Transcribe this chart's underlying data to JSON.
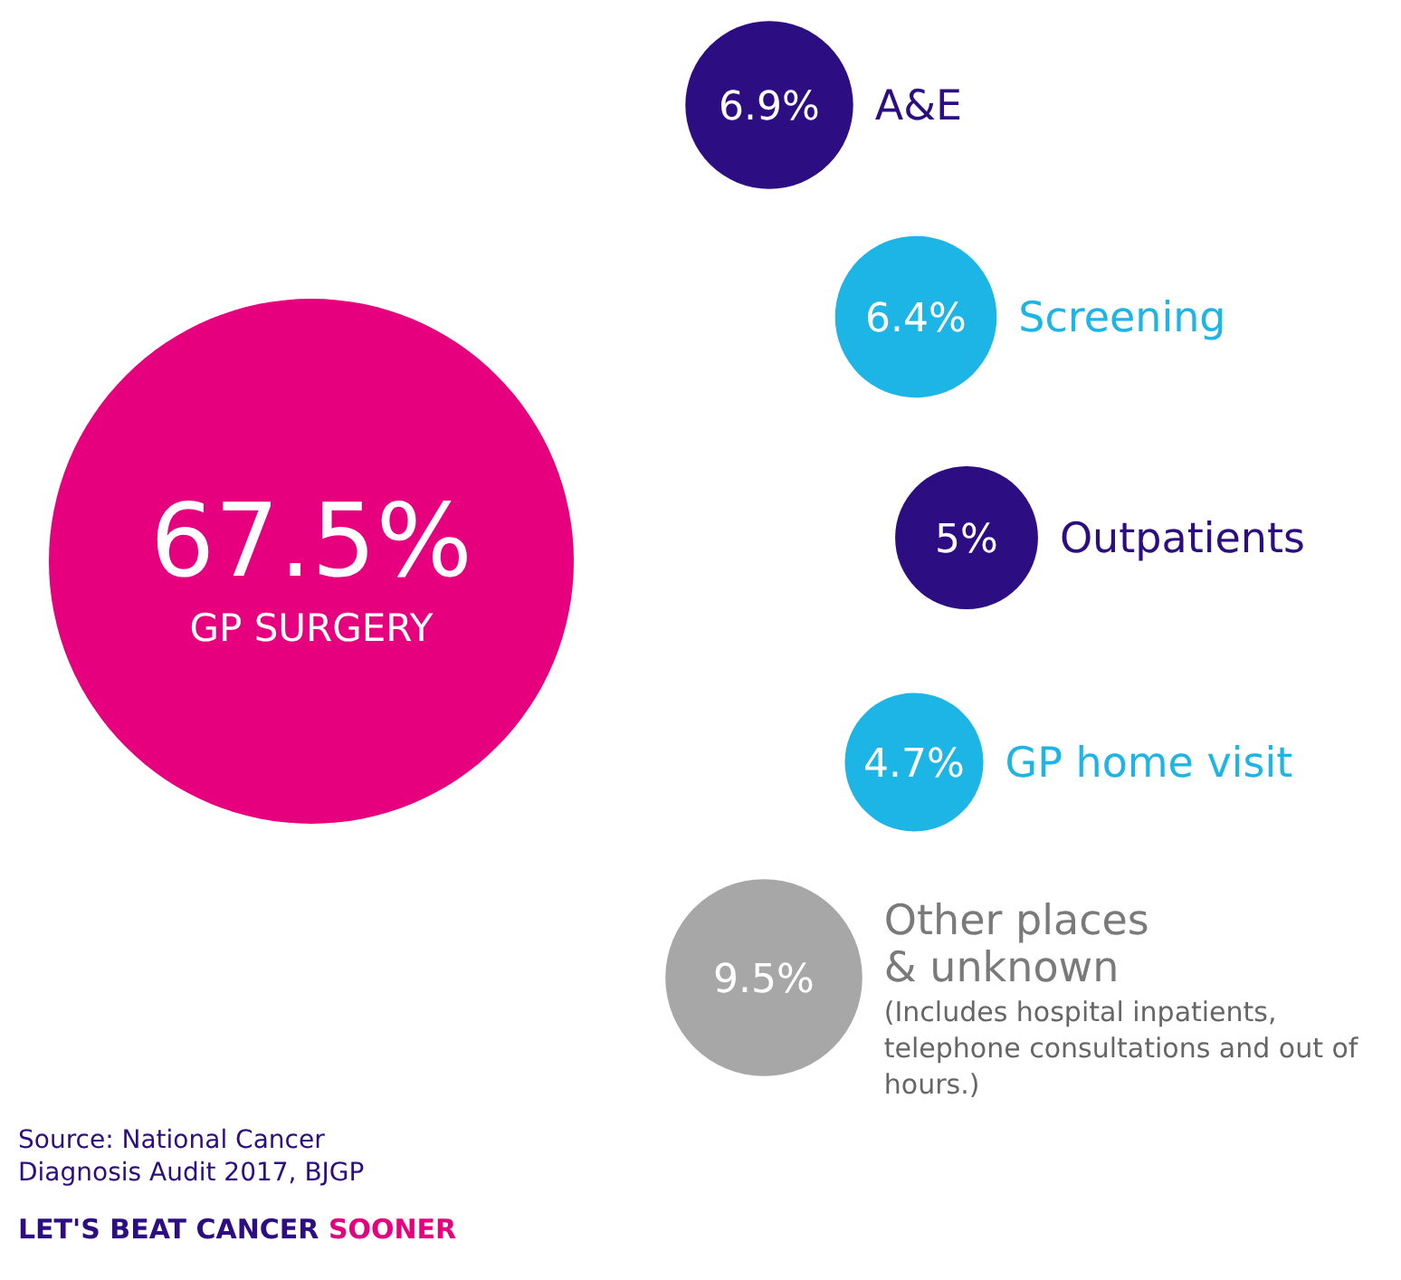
{
  "chart_data": {
    "type": "other",
    "categories": [
      "GP SURGERY",
      "A&E",
      "Screening",
      "Outpatients",
      "GP home visit",
      "Other places & unknown"
    ],
    "values": [
      67.5,
      6.9,
      6.4,
      5,
      4.7,
      9.5
    ],
    "value_labels": [
      "67.5%",
      "6.9%",
      "6.4%",
      "5%",
      "4.7%",
      "9.5%"
    ],
    "colors": [
      "#e6007e",
      "#2d0d82",
      "#1db4e6",
      "#2d0d82",
      "#1db4e6",
      "#a7a7a7"
    ],
    "annotations": [
      "(Includes hospital inpatients, telephone consultations and out of hours.)",
      "Source: National Cancer Diagnosis Audit 2017, BJGP",
      "LET'S BEAT CANCER SOONER"
    ]
  }
}
